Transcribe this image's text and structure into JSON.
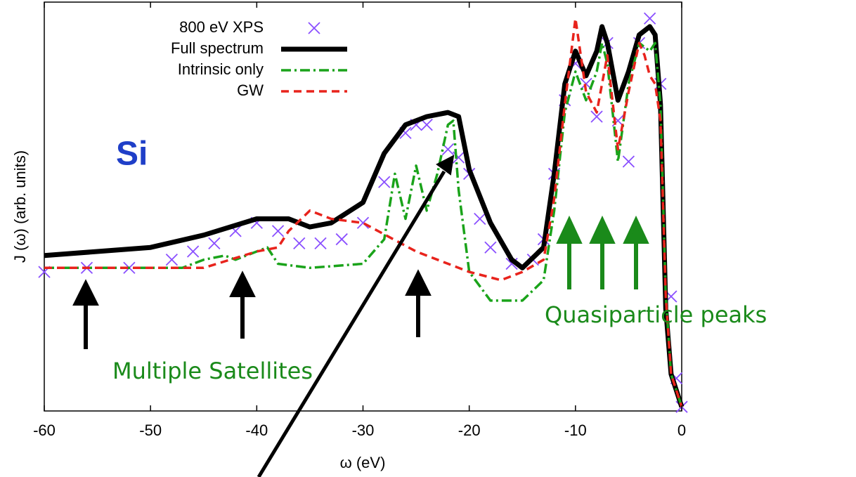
{
  "chart_data": {
    "type": "line",
    "xlabel": "ω (eV)",
    "ylabel": "J (ω) (arb. units)",
    "xlim": [
      -60,
      0
    ],
    "xticks": [
      -60,
      -50,
      -40,
      -30,
      -20,
      -10,
      0
    ],
    "ylim": [
      0,
      1
    ],
    "legend": "upper-left",
    "series": [
      {
        "name": "800 eV XPS",
        "color": "#8a4fff",
        "style": "markers",
        "x": [
          -60,
          -56,
          -52,
          -48,
          -46,
          -44,
          -42,
          -40,
          -38,
          -36,
          -34,
          -32,
          -30,
          -28,
          -26,
          -25,
          -24,
          -22,
          -21,
          -20,
          -19,
          -18,
          -16,
          -14,
          -13,
          -12,
          -11,
          -10,
          -9,
          -8,
          -7,
          -6,
          -5,
          -4,
          -3,
          -2,
          -1,
          -0.5,
          0
        ],
        "values": [
          0.34,
          0.35,
          0.35,
          0.37,
          0.39,
          0.41,
          0.44,
          0.46,
          0.44,
          0.41,
          0.41,
          0.42,
          0.46,
          0.56,
          0.68,
          0.7,
          0.7,
          0.64,
          0.62,
          0.58,
          0.47,
          0.4,
          0.36,
          0.37,
          0.42,
          0.58,
          0.76,
          0.85,
          0.8,
          0.72,
          0.9,
          0.71,
          0.61,
          0.9,
          0.96,
          0.8,
          0.28,
          0.08,
          0.01
        ]
      },
      {
        "name": "Full spectrum",
        "color": "#000000",
        "style": "solid",
        "x": [
          -60,
          -50,
          -45,
          -40,
          -37,
          -35,
          -33,
          -30,
          -28,
          -26,
          -24,
          -22,
          -21,
          -20,
          -18,
          -16,
          -15,
          -13,
          -12,
          -11,
          -10,
          -9,
          -8,
          -7.5,
          -7,
          -6,
          -5,
          -4,
          -3,
          -2.5,
          -2,
          -1.5,
          -1,
          0
        ],
        "values": [
          0.38,
          0.4,
          0.43,
          0.47,
          0.47,
          0.45,
          0.46,
          0.51,
          0.63,
          0.7,
          0.72,
          0.73,
          0.72,
          0.59,
          0.46,
          0.37,
          0.35,
          0.4,
          0.58,
          0.8,
          0.88,
          0.82,
          0.88,
          0.94,
          0.9,
          0.76,
          0.83,
          0.92,
          0.94,
          0.92,
          0.75,
          0.25,
          0.09,
          0.01
        ]
      },
      {
        "name": "Intrinsic only",
        "color": "#1aa31a",
        "style": "dashdot",
        "x": [
          -60,
          -47,
          -45,
          -43,
          -42,
          -41,
          -40,
          -39,
          -38,
          -35,
          -30,
          -28,
          -27,
          -26,
          -25,
          -24,
          -23,
          -22,
          -21.5,
          -21,
          -20,
          -18,
          -15,
          -13,
          -12,
          -11,
          -10,
          -9,
          -8,
          -7.5,
          -7,
          -6,
          -5,
          -4,
          -3,
          -2.5,
          -2,
          -1.5,
          -1,
          0
        ],
        "values": [
          0.35,
          0.35,
          0.37,
          0.38,
          0.37,
          0.38,
          0.39,
          0.4,
          0.36,
          0.35,
          0.36,
          0.42,
          0.58,
          0.47,
          0.6,
          0.49,
          0.58,
          0.7,
          0.71,
          0.54,
          0.34,
          0.27,
          0.27,
          0.32,
          0.49,
          0.73,
          0.83,
          0.76,
          0.83,
          0.9,
          0.85,
          0.61,
          0.8,
          0.9,
          0.88,
          0.9,
          0.75,
          0.28,
          0.09,
          0.01
        ]
      },
      {
        "name": "GW",
        "color": "#e8231c",
        "style": "dashed",
        "x": [
          -60,
          -45,
          -40,
          -38,
          -37,
          -35,
          -33,
          -30,
          -25,
          -20,
          -17,
          -15,
          -13,
          -12,
          -11,
          -10,
          -9,
          -8,
          -7,
          -6,
          -5,
          -4,
          -3.5,
          -3,
          -2.5,
          -2,
          -1.5,
          -1,
          0
        ],
        "values": [
          0.35,
          0.35,
          0.39,
          0.4,
          0.44,
          0.49,
          0.47,
          0.46,
          0.39,
          0.34,
          0.32,
          0.34,
          0.37,
          0.52,
          0.75,
          0.96,
          0.78,
          0.73,
          0.87,
          0.64,
          0.78,
          0.9,
          0.87,
          0.82,
          0.8,
          0.71,
          0.28,
          0.09,
          0.01
        ]
      }
    ],
    "annotations": [
      "Si",
      "Quasiparticle peaks",
      "Multiple Satellites"
    ]
  }
}
